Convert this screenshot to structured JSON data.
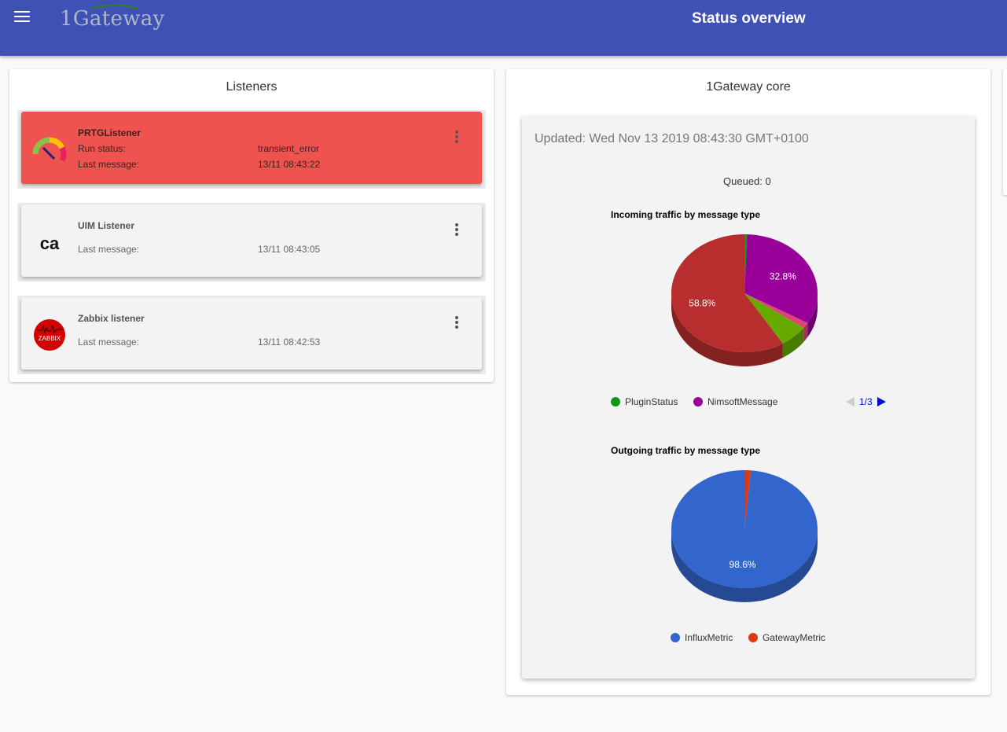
{
  "app": {
    "logo_text": "1Gateway",
    "page_title": "Status overview"
  },
  "listeners": {
    "title": "Listeners",
    "items": [
      {
        "name": "PRTGListener",
        "status": "error",
        "icon": "prtg-gauge-icon",
        "rows": [
          {
            "label": "Run status:",
            "value": "transient_error"
          },
          {
            "label": "Last message:",
            "value": "13/11 08:43:22"
          }
        ]
      },
      {
        "name": "UIM Listener",
        "status": "ok",
        "icon": "ca-logo-icon",
        "icon_text": "ca",
        "rows": [
          {
            "label": "Last message:",
            "value": "13/11 08:43:05"
          }
        ]
      },
      {
        "name": "Zabbix listener",
        "status": "ok",
        "icon": "zabbix-logo-icon",
        "icon_text": "ZABBIX",
        "rows": [
          {
            "label": "Last message:",
            "value": "13/11 08:42:53"
          }
        ]
      }
    ]
  },
  "core": {
    "title": "1Gateway core",
    "updated": "Updated: Wed Nov 13 2019 08:43:30 GMT+0100",
    "queued": "Queued: 0"
  },
  "colors": {
    "appbar": "#3f51b5",
    "error_card": "#ef5350",
    "pager": "#0011cc"
  },
  "chart_data": [
    {
      "type": "pie",
      "title": "Incoming traffic by message type",
      "three_d": true,
      "slices": [
        {
          "label": "PluginStatus",
          "value": 0.6,
          "color": "#109618"
        },
        {
          "label": "NimsoftMessage",
          "value": 32.8,
          "color": "#990099",
          "data_label": "32.8%"
        },
        {
          "label": "",
          "value": 1.6,
          "color": "#dd4477"
        },
        {
          "label": "",
          "value": 6.2,
          "color": "#66aa00"
        },
        {
          "label": "",
          "value": 58.8,
          "color": "#b82e2e",
          "data_label": "58.8%"
        }
      ],
      "legend": [
        "PluginStatus",
        "NimsoftMessage"
      ],
      "legend_page": "1/3"
    },
    {
      "type": "pie",
      "title": "Outgoing traffic by message type",
      "three_d": true,
      "slices": [
        {
          "label": "GatewayMetric",
          "value": 1.4,
          "color": "#dc3912"
        },
        {
          "label": "InfluxMetric",
          "value": 98.6,
          "color": "#3366cc",
          "data_label": "98.6%"
        }
      ],
      "legend": [
        "InfluxMetric",
        "GatewayMetric"
      ]
    }
  ]
}
